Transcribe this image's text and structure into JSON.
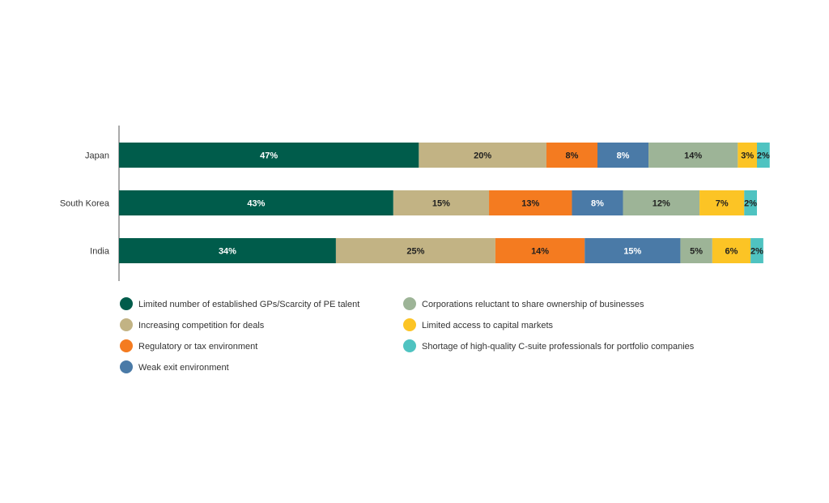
{
  "chart_data": {
    "type": "bar",
    "orientation": "horizontal",
    "stacked": true,
    "categories": [
      "Japan",
      "South Korea",
      "India"
    ],
    "value_suffix": "%",
    "xlim": [
      0,
      100
    ],
    "grid": false,
    "legend_position": "bottom",
    "series": [
      {
        "name": "Limited number of established GPs/Scarcity of PE talent",
        "color": "#005c4b",
        "label_color": "#ffffff",
        "values": [
          47,
          43,
          34
        ]
      },
      {
        "name": "Increasing competition for deals",
        "color": "#c2b384",
        "label_color": "#1f1f1f",
        "values": [
          20,
          15,
          25
        ]
      },
      {
        "name": "Regulatory or tax environment",
        "color": "#f47b20",
        "label_color": "#1f1f1f",
        "values": [
          8,
          13,
          14
        ]
      },
      {
        "name": "Weak exit environment",
        "color": "#4a7aa7",
        "label_color": "#ffffff",
        "values": [
          8,
          8,
          15
        ]
      },
      {
        "name": "Corporations reluctant to share ownership of businesses",
        "color": "#9db497",
        "label_color": "#1f1f1f",
        "values": [
          14,
          12,
          5
        ]
      },
      {
        "name": "Limited access to capital markets",
        "color": "#fcc425",
        "label_color": "#1f1f1f",
        "values": [
          3,
          7,
          6
        ]
      },
      {
        "name": "Shortage of high-quality C-suite professionals for portfolio companies",
        "color": "#4fc3c1",
        "label_color": "#1f1f1f",
        "values": [
          2,
          2,
          2
        ]
      }
    ]
  }
}
